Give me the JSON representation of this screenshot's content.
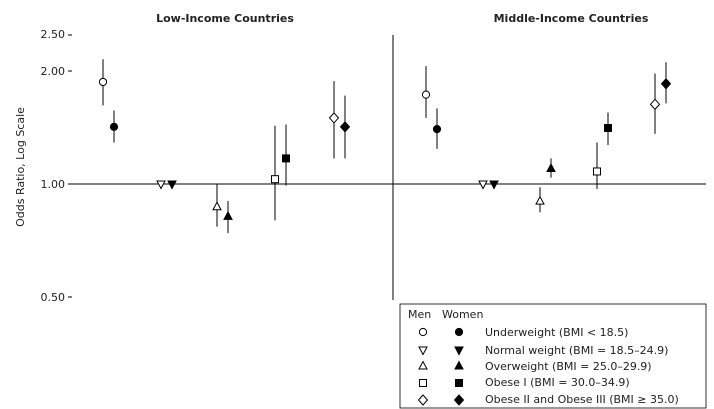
{
  "chart_data": {
    "type": "scatter",
    "y_scale": "log",
    "ylim": [
      0.5,
      2.5
    ],
    "yticks": [
      {
        "value": 2.5,
        "label": "2.50"
      },
      {
        "value": 2.0,
        "label": "2.00"
      },
      {
        "value": 1.0,
        "label": "1.00"
      },
      {
        "value": 0.5,
        "label": "0.50"
      }
    ],
    "ylabel": "Odds Ratio, Log Scale",
    "reference_line": 1.0,
    "categories": [
      "Underweight",
      "Normal weight",
      "Overweight",
      "Obese I",
      "Obese II and Obese III"
    ],
    "panels": [
      {
        "title": "Low-Income Countries",
        "series": [
          {
            "name": "Men",
            "values": [
              {
                "category": "Underweight",
                "or": 1.87,
                "lo": 1.62,
                "hi": 2.15
              },
              {
                "category": "Normal weight",
                "or": 1.0,
                "lo": 1.0,
                "hi": 1.0
              },
              {
                "category": "Overweight",
                "or": 0.87,
                "lo": 0.77,
                "hi": 1.0
              },
              {
                "category": "Obese I",
                "or": 1.03,
                "lo": 0.8,
                "hi": 1.43
              },
              {
                "category": "Obese II and Obese III",
                "or": 1.5,
                "lo": 1.17,
                "hi": 1.88
              }
            ]
          },
          {
            "name": "Women",
            "values": [
              {
                "category": "Underweight",
                "or": 1.42,
                "lo": 1.29,
                "hi": 1.57
              },
              {
                "category": "Normal weight",
                "or": 1.0,
                "lo": 1.0,
                "hi": 1.0
              },
              {
                "category": "Overweight",
                "or": 0.82,
                "lo": 0.74,
                "hi": 0.9
              },
              {
                "category": "Obese I",
                "or": 1.17,
                "lo": 0.99,
                "hi": 1.44
              },
              {
                "category": "Obese II and Obese III",
                "or": 1.42,
                "lo": 1.17,
                "hi": 1.72
              }
            ]
          }
        ]
      },
      {
        "title": "Middle-Income Countries",
        "series": [
          {
            "name": "Men",
            "values": [
              {
                "category": "Underweight",
                "or": 1.73,
                "lo": 1.5,
                "hi": 2.06
              },
              {
                "category": "Normal weight",
                "or": 1.0,
                "lo": 1.0,
                "hi": 1.0
              },
              {
                "category": "Overweight",
                "or": 0.9,
                "lo": 0.84,
                "hi": 0.98
              },
              {
                "category": "Obese I",
                "or": 1.08,
                "lo": 0.97,
                "hi": 1.29
              },
              {
                "category": "Obese II and Obese III",
                "or": 1.63,
                "lo": 1.36,
                "hi": 1.97
              }
            ]
          },
          {
            "name": "Women",
            "values": [
              {
                "category": "Underweight",
                "or": 1.4,
                "lo": 1.24,
                "hi": 1.59
              },
              {
                "category": "Normal weight",
                "or": 1.0,
                "lo": 1.0,
                "hi": 1.0
              },
              {
                "category": "Overweight",
                "or": 1.1,
                "lo": 1.04,
                "hi": 1.17
              },
              {
                "category": "Obese I",
                "or": 1.41,
                "lo": 1.27,
                "hi": 1.55
              },
              {
                "category": "Obese II and Obese III",
                "or": 1.85,
                "lo": 1.64,
                "hi": 2.11
              }
            ]
          }
        ]
      }
    ],
    "legend": {
      "placement": "bottom-right",
      "header_men": "Men",
      "header_women": "Women",
      "items": [
        {
          "category": "Underweight",
          "shape": "circle",
          "label": "Underweight (BMI < 18.5)"
        },
        {
          "category": "Normal weight",
          "shape": "triangle-down",
          "label": "Normal weight (BMI = 18.5–24.9)"
        },
        {
          "category": "Overweight",
          "shape": "triangle-up",
          "label": "Overweight (BMI = 25.0–29.9)"
        },
        {
          "category": "Obese I",
          "shape": "square",
          "label": "Obese I (BMI = 30.0–34.9)"
        },
        {
          "category": "Obese II and Obese III",
          "shape": "diamond",
          "label": "Obese II and Obese III (BMI ≥ 35.0)"
        }
      ]
    }
  }
}
